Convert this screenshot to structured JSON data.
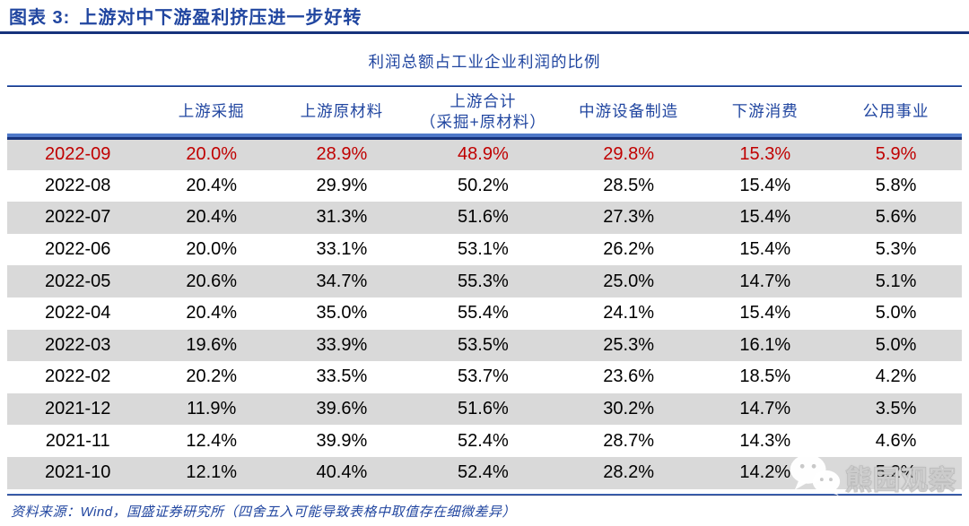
{
  "figure": {
    "label": "图表 3:",
    "title": "上游对中下游盈利挤压进一步好转"
  },
  "chart_data": {
    "type": "table",
    "title": "利润总额占工业企业利润的比例",
    "columns": [
      "",
      "上游采掘",
      "上游原材料",
      "上游合计（采掘+原材料）",
      "中游设备制造",
      "下游消费",
      "公用事业"
    ],
    "columns_display": [
      "",
      "上游采掘",
      "上游原材料",
      "上游合计|（采掘+原材料）",
      "中游设备制造",
      "下游消费",
      "公用事业"
    ],
    "rows": [
      {
        "date": "2022-09",
        "values": [
          "20.0%",
          "28.9%",
          "48.9%",
          "29.8%",
          "15.3%",
          "5.9%"
        ],
        "highlight": true
      },
      {
        "date": "2022-08",
        "values": [
          "20.4%",
          "29.9%",
          "50.2%",
          "28.5%",
          "15.4%",
          "5.8%"
        ],
        "highlight": false
      },
      {
        "date": "2022-07",
        "values": [
          "20.4%",
          "31.3%",
          "51.6%",
          "27.3%",
          "15.4%",
          "5.6%"
        ],
        "highlight": false
      },
      {
        "date": "2022-06",
        "values": [
          "20.0%",
          "33.1%",
          "53.1%",
          "26.2%",
          "15.4%",
          "5.3%"
        ],
        "highlight": false
      },
      {
        "date": "2022-05",
        "values": [
          "20.6%",
          "34.7%",
          "55.3%",
          "25.0%",
          "14.7%",
          "5.1%"
        ],
        "highlight": false
      },
      {
        "date": "2022-04",
        "values": [
          "20.4%",
          "35.0%",
          "55.4%",
          "24.1%",
          "15.4%",
          "5.0%"
        ],
        "highlight": false
      },
      {
        "date": "2022-03",
        "values": [
          "19.6%",
          "33.9%",
          "53.5%",
          "25.3%",
          "16.1%",
          "5.0%"
        ],
        "highlight": false
      },
      {
        "date": "2022-02",
        "values": [
          "20.2%",
          "33.5%",
          "53.7%",
          "23.6%",
          "18.5%",
          "4.2%"
        ],
        "highlight": false
      },
      {
        "date": "2021-12",
        "values": [
          "11.9%",
          "39.6%",
          "51.6%",
          "30.2%",
          "14.7%",
          "3.5%"
        ],
        "highlight": false
      },
      {
        "date": "2021-11",
        "values": [
          "12.4%",
          "39.9%",
          "52.4%",
          "28.7%",
          "14.3%",
          "4.6%"
        ],
        "highlight": false
      },
      {
        "date": "2021-10",
        "values": [
          "12.1%",
          "40.4%",
          "52.4%",
          "28.2%",
          "14.2%",
          "5.2%"
        ],
        "highlight": false
      }
    ]
  },
  "footer": {
    "source": "资料来源：Wind，国盛证券研究所（四舍五入可能导致表格中取值存在细微差异）"
  },
  "watermark": {
    "icon": "wechat-icon",
    "label": "熊园观察"
  },
  "colors": {
    "accent_blue": "#2146A0",
    "line_blue": "#16327C",
    "line_blue_light": "#4F79C9",
    "highlight_red": "#C00000",
    "row_stripe": "#D9D9D9",
    "text_black": "#000000"
  }
}
